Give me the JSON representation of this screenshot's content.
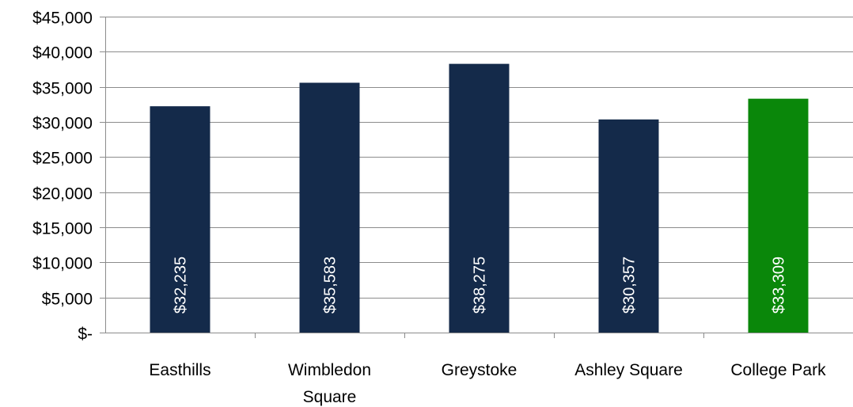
{
  "chart_data": {
    "type": "bar",
    "categories": [
      "Easthills",
      "Wimbledon Square",
      "Greystoke",
      "Ashley Square",
      "College Park"
    ],
    "category_lines": [
      [
        "Easthills"
      ],
      [
        "Wimbledon",
        "Square"
      ],
      [
        "Greystoke"
      ],
      [
        "Ashley Square"
      ],
      [
        "College Park"
      ]
    ],
    "values": [
      32235,
      35583,
      38275,
      30357,
      33309
    ],
    "data_labels": [
      "$32,235",
      "$35,583",
      "$38,275",
      "$30,357",
      "$33,309"
    ],
    "bar_colors": [
      "#142a4a",
      "#142a4a",
      "#142a4a",
      "#142a4a",
      "#0a870a"
    ],
    "ylim": [
      0,
      45000
    ],
    "yticks": [
      0,
      5000,
      10000,
      15000,
      20000,
      25000,
      30000,
      35000,
      40000,
      45000
    ],
    "ytick_labels": [
      "$-",
      "$5,000",
      "$10,000",
      "$15,000",
      "$20,000",
      "$25,000",
      "$30,000",
      "$35,000",
      "$40,000",
      "$45,000"
    ],
    "grid": true,
    "legend": false
  },
  "colors": {
    "bar_default": "#142a4a",
    "bar_highlight": "#0a870a",
    "grid": "#8c8c8c",
    "axis": "#8c8c8c",
    "label_text": "#000000",
    "data_label_text": "#ffffff"
  }
}
